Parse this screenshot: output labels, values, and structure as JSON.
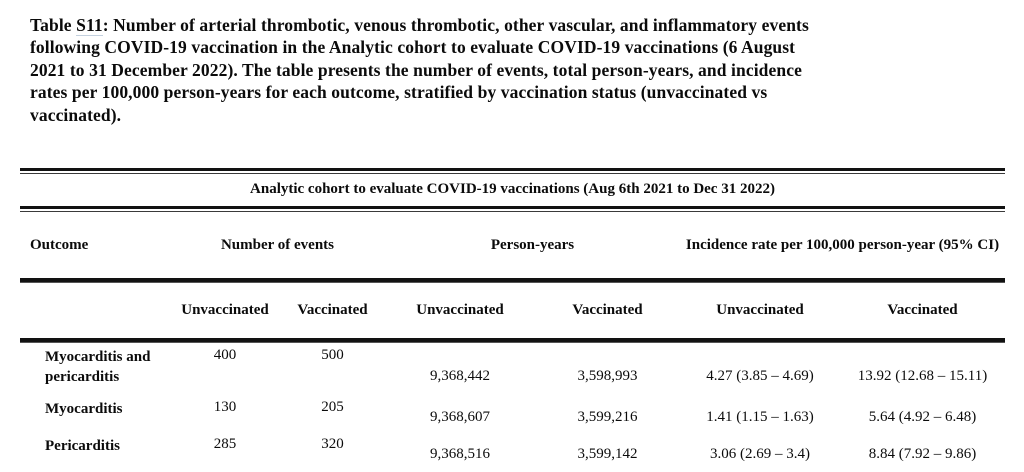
{
  "caption": {
    "label_prefix": "Table ",
    "label_id": "S11",
    "label_suffix": ": ",
    "lines": [
      "Number of arterial thrombotic, venous thrombotic, other vascular, and inflammatory events",
      "following COVID-19 vaccination in the Analytic cohort to evaluate COVID-19 vaccinations (6 August",
      "2021 to 31 December 2022). The table presents the number of events, total person-years, and incidence",
      "rates per 100,000 person-years for each outcome, stratified by vaccination status (unvaccinated vs",
      "vaccinated)."
    ]
  },
  "table": {
    "cohort_title": "Analytic cohort to evaluate COVID-19 vaccinations (Aug 6th 2021 to Dec 31 2022)",
    "group_headers": {
      "outcome": "Outcome",
      "events": "Number of events",
      "person_years": "Person-years",
      "incidence": "Incidence rate per 100,000 person-year (95% CI)"
    },
    "sub_headers": [
      "Unvaccinated",
      "Vaccinated",
      "Unvaccinated",
      "Vaccinated",
      "Unvaccinated",
      "Vaccinated"
    ],
    "rows": [
      {
        "outcome": "Myocarditis and pericarditis",
        "events_unvaccinated": "400",
        "events_vaccinated": "500",
        "py_unvaccinated": "9,368,442",
        "py_vaccinated": "3,598,993",
        "ir_unvaccinated": "4.27 (3.85 – 4.69)",
        "ir_vaccinated": "13.92 (12.68 – 15.11)"
      },
      {
        "outcome": "Myocarditis",
        "events_unvaccinated": "130",
        "events_vaccinated": "205",
        "py_unvaccinated": "9,368,607",
        "py_vaccinated": "3,599,216",
        "ir_unvaccinated": "1.41 (1.15 – 1.63)",
        "ir_vaccinated": "5.64 (4.92 – 6.48)"
      },
      {
        "outcome": "Pericarditis",
        "events_unvaccinated": "285",
        "events_vaccinated": "320",
        "py_unvaccinated": "9,368,516",
        "py_vaccinated": "3,599,142",
        "ir_unvaccinated": "3.06 (2.69 – 3.4)",
        "ir_vaccinated": "8.84 (7.92 – 9.86)"
      }
    ]
  }
}
